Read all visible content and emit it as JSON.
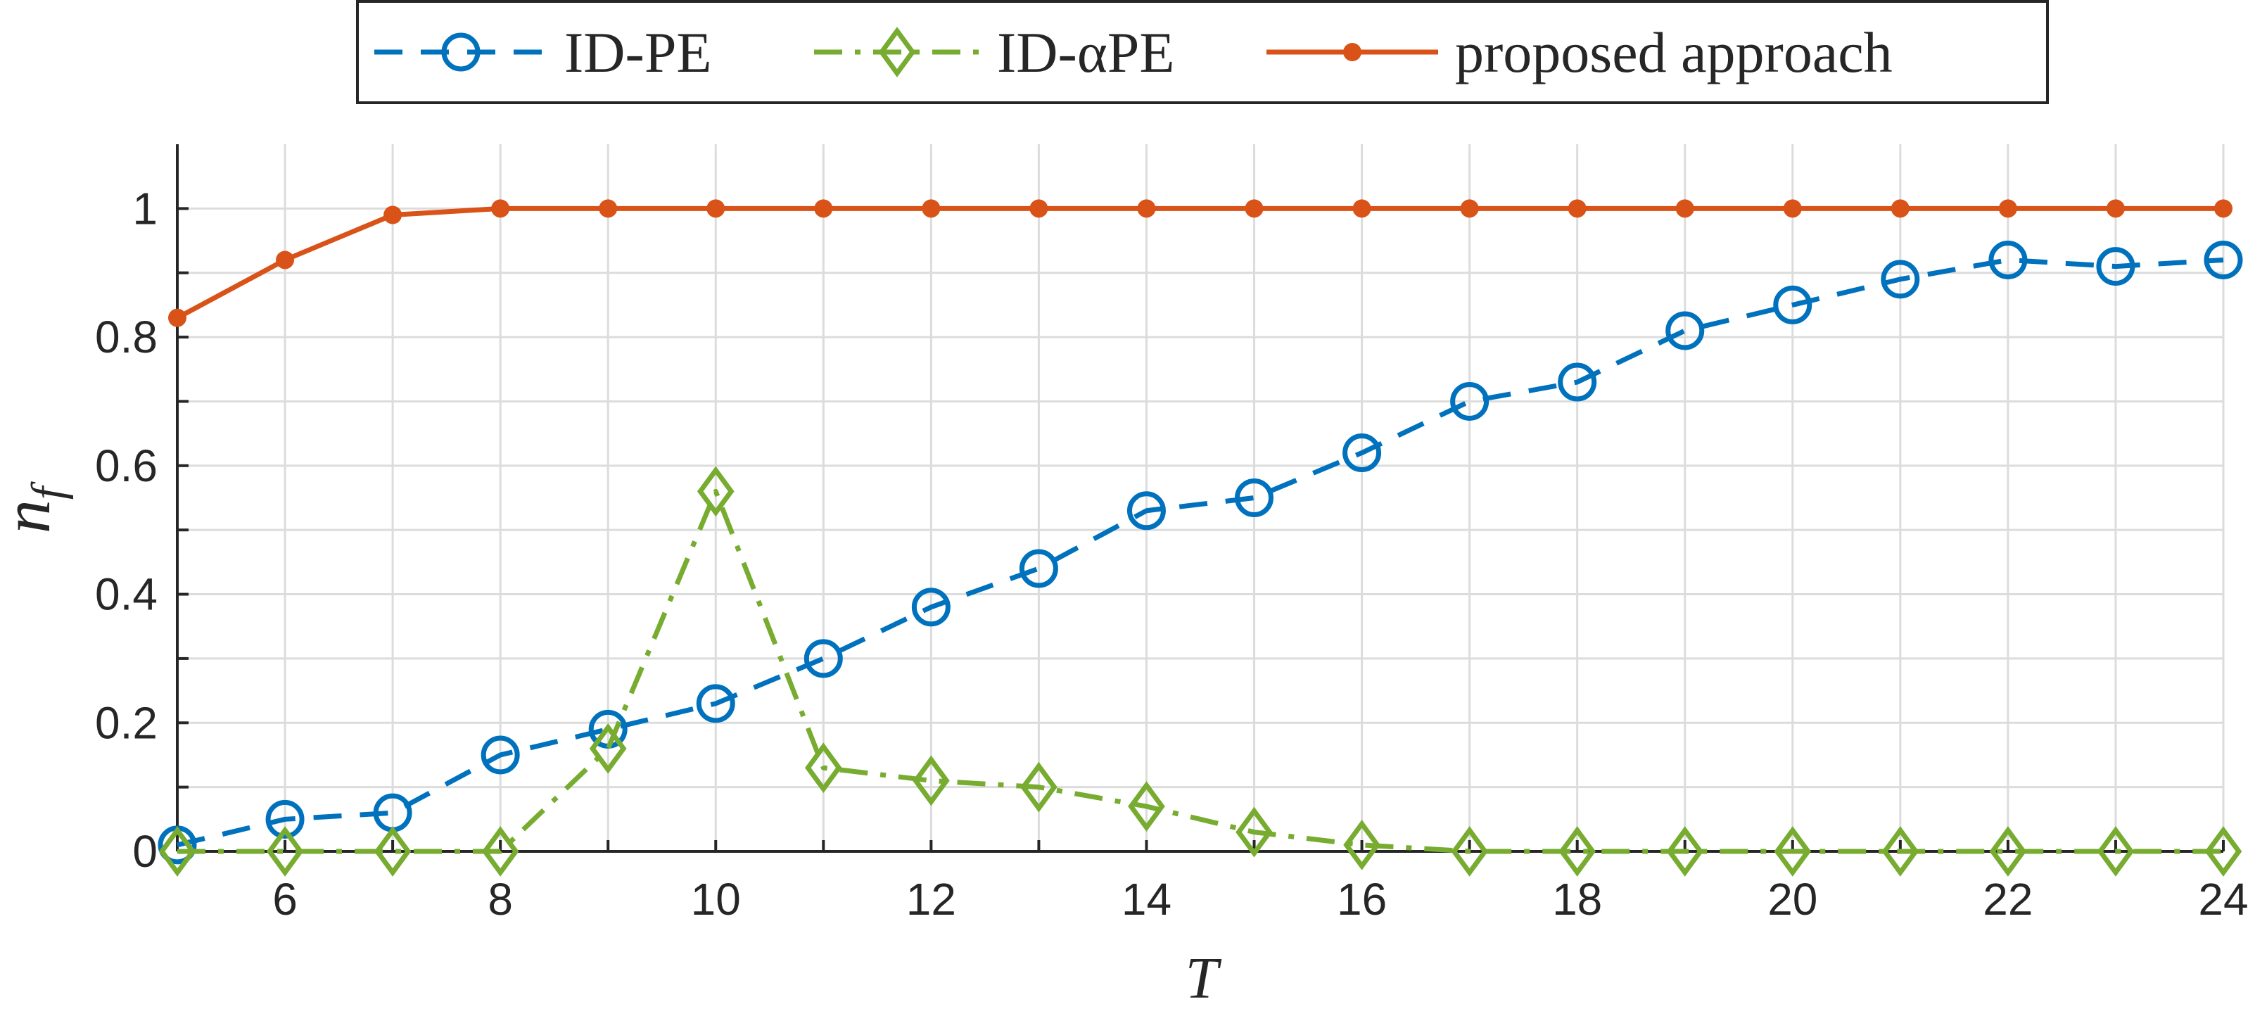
{
  "chart_data": {
    "type": "line",
    "title": "",
    "xlabel": "T",
    "ylabel": "n_f",
    "ylabel_main": "n",
    "ylabel_sub": "f",
    "xlim": [
      5,
      24
    ],
    "ylim": [
      0,
      1.1
    ],
    "xticks": [
      6,
      8,
      10,
      12,
      14,
      16,
      18,
      20,
      22,
      24
    ],
    "yticks": [
      0,
      0.2,
      0.4,
      0.6,
      0.8,
      1
    ],
    "ytick_labels": [
      "0",
      "0.2",
      "0.4",
      "0.6",
      "0.8",
      "1"
    ],
    "grid": true,
    "legend_position": "top-center",
    "x": [
      5,
      6,
      7,
      8,
      9,
      10,
      11,
      12,
      13,
      14,
      15,
      16,
      17,
      18,
      19,
      20,
      21,
      22,
      23,
      24
    ],
    "series": [
      {
        "name": "ID-PE",
        "color": "#0072BD",
        "line_style": "dashed",
        "marker": "circle",
        "values": [
          0.01,
          0.05,
          0.06,
          0.15,
          0.19,
          0.23,
          0.3,
          0.38,
          0.44,
          0.53,
          0.55,
          0.62,
          0.7,
          0.73,
          0.81,
          0.85,
          0.89,
          0.92,
          0.91,
          0.92
        ]
      },
      {
        "name": "ID-αPE",
        "color": "#77AC30",
        "line_style": "dash-dot",
        "marker": "diamond",
        "values": [
          0,
          0,
          0,
          0,
          0.16,
          0.56,
          0.13,
          0.11,
          0.1,
          0.07,
          0.03,
          0.01,
          0,
          0,
          0,
          0,
          0,
          0,
          0,
          0
        ]
      },
      {
        "name": "proposed approach",
        "color": "#D95319",
        "line_style": "solid",
        "marker": "dot",
        "values": [
          0.83,
          0.92,
          0.99,
          1,
          1,
          1,
          1,
          1,
          1,
          1,
          1,
          1,
          1,
          1,
          1,
          1,
          1,
          1,
          1,
          1
        ]
      }
    ]
  }
}
